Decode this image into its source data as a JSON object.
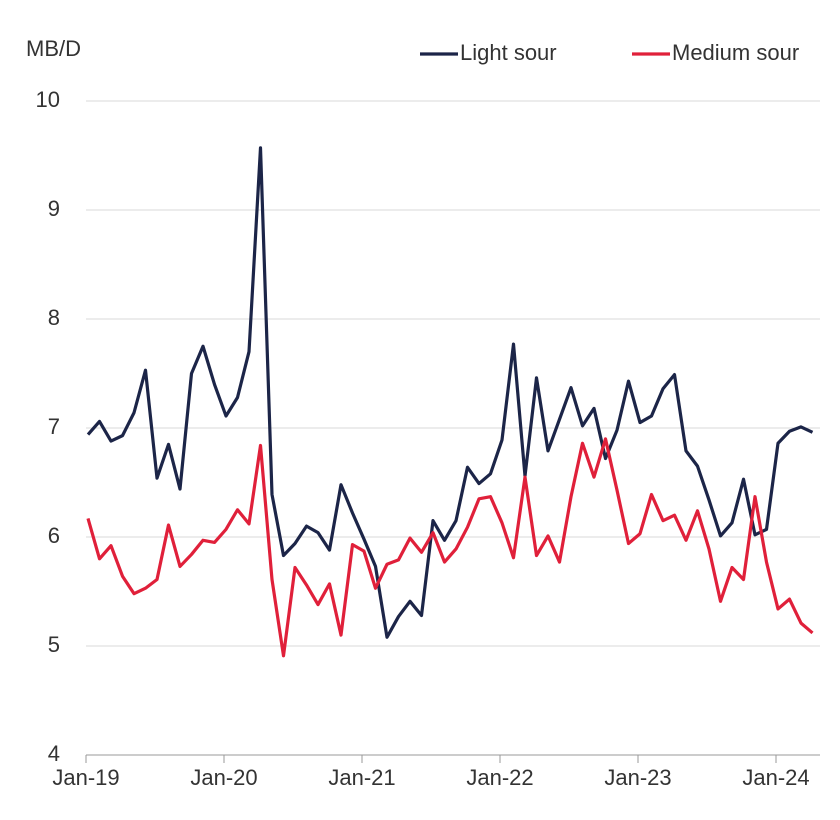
{
  "chart_data": {
    "type": "line",
    "y_label": "MB/D",
    "categories": [
      "Jan-19",
      null,
      null,
      null,
      null,
      null,
      null,
      null,
      null,
      null,
      null,
      null,
      "Jan-20",
      null,
      null,
      null,
      null,
      null,
      null,
      null,
      null,
      null,
      null,
      null,
      "Jan-21",
      null,
      null,
      null,
      null,
      null,
      null,
      null,
      null,
      null,
      null,
      null,
      "Jan-22",
      null,
      null,
      null,
      null,
      null,
      null,
      null,
      null,
      null,
      null,
      null,
      "Jan-23",
      null,
      null,
      null,
      null,
      null,
      null,
      null,
      null,
      null,
      null,
      null,
      "Jan-24",
      null,
      null,
      null
    ],
    "series": [
      {
        "name": "Light sour",
        "color": "#1c2548",
        "values": [
          6.94,
          7.06,
          6.88,
          6.93,
          7.14,
          7.53,
          6.54,
          6.85,
          6.44,
          7.5,
          7.75,
          7.4,
          7.11,
          7.28,
          7.7,
          9.57,
          6.39,
          5.83,
          5.94,
          6.1,
          6.04,
          5.88,
          6.48,
          6.22,
          5.98,
          5.73,
          5.08,
          5.27,
          5.41,
          5.28,
          6.15,
          5.97,
          6.15,
          6.64,
          6.49,
          6.58,
          6.89,
          7.77,
          6.56,
          7.46,
          6.79,
          7.08,
          7.37,
          7.02,
          7.18,
          6.72,
          6.98,
          7.43,
          7.05,
          7.11,
          7.36,
          7.49,
          6.79,
          6.65,
          6.34,
          6.01,
          6.13,
          6.53,
          6.02,
          6.07,
          6.86,
          6.97,
          7.01,
          6.96
        ]
      },
      {
        "name": "Medium sour",
        "color": "#e0203a",
        "values": [
          6.17,
          5.8,
          5.92,
          5.64,
          5.48,
          5.53,
          5.61,
          6.11,
          5.73,
          5.84,
          5.97,
          5.95,
          6.07,
          6.25,
          6.12,
          6.84,
          5.61,
          4.91,
          5.72,
          5.56,
          5.38,
          5.57,
          5.1,
          5.93,
          5.87,
          5.53,
          5.75,
          5.79,
          5.99,
          5.86,
          6.04,
          5.77,
          5.89,
          6.09,
          6.35,
          6.37,
          6.13,
          5.81,
          6.55,
          5.83,
          6.01,
          5.77,
          6.37,
          6.86,
          6.55,
          6.9,
          6.43,
          5.94,
          6.03,
          6.39,
          6.15,
          6.2,
          5.97,
          6.24,
          5.89,
          5.41,
          5.72,
          5.61,
          6.37,
          5.77,
          5.34,
          5.43,
          5.21,
          5.12
        ]
      }
    ],
    "ylim": [
      4,
      10
    ],
    "yticks": [
      4,
      5,
      6,
      7,
      8,
      9,
      10
    ],
    "grid": true,
    "legend": "top-right"
  }
}
